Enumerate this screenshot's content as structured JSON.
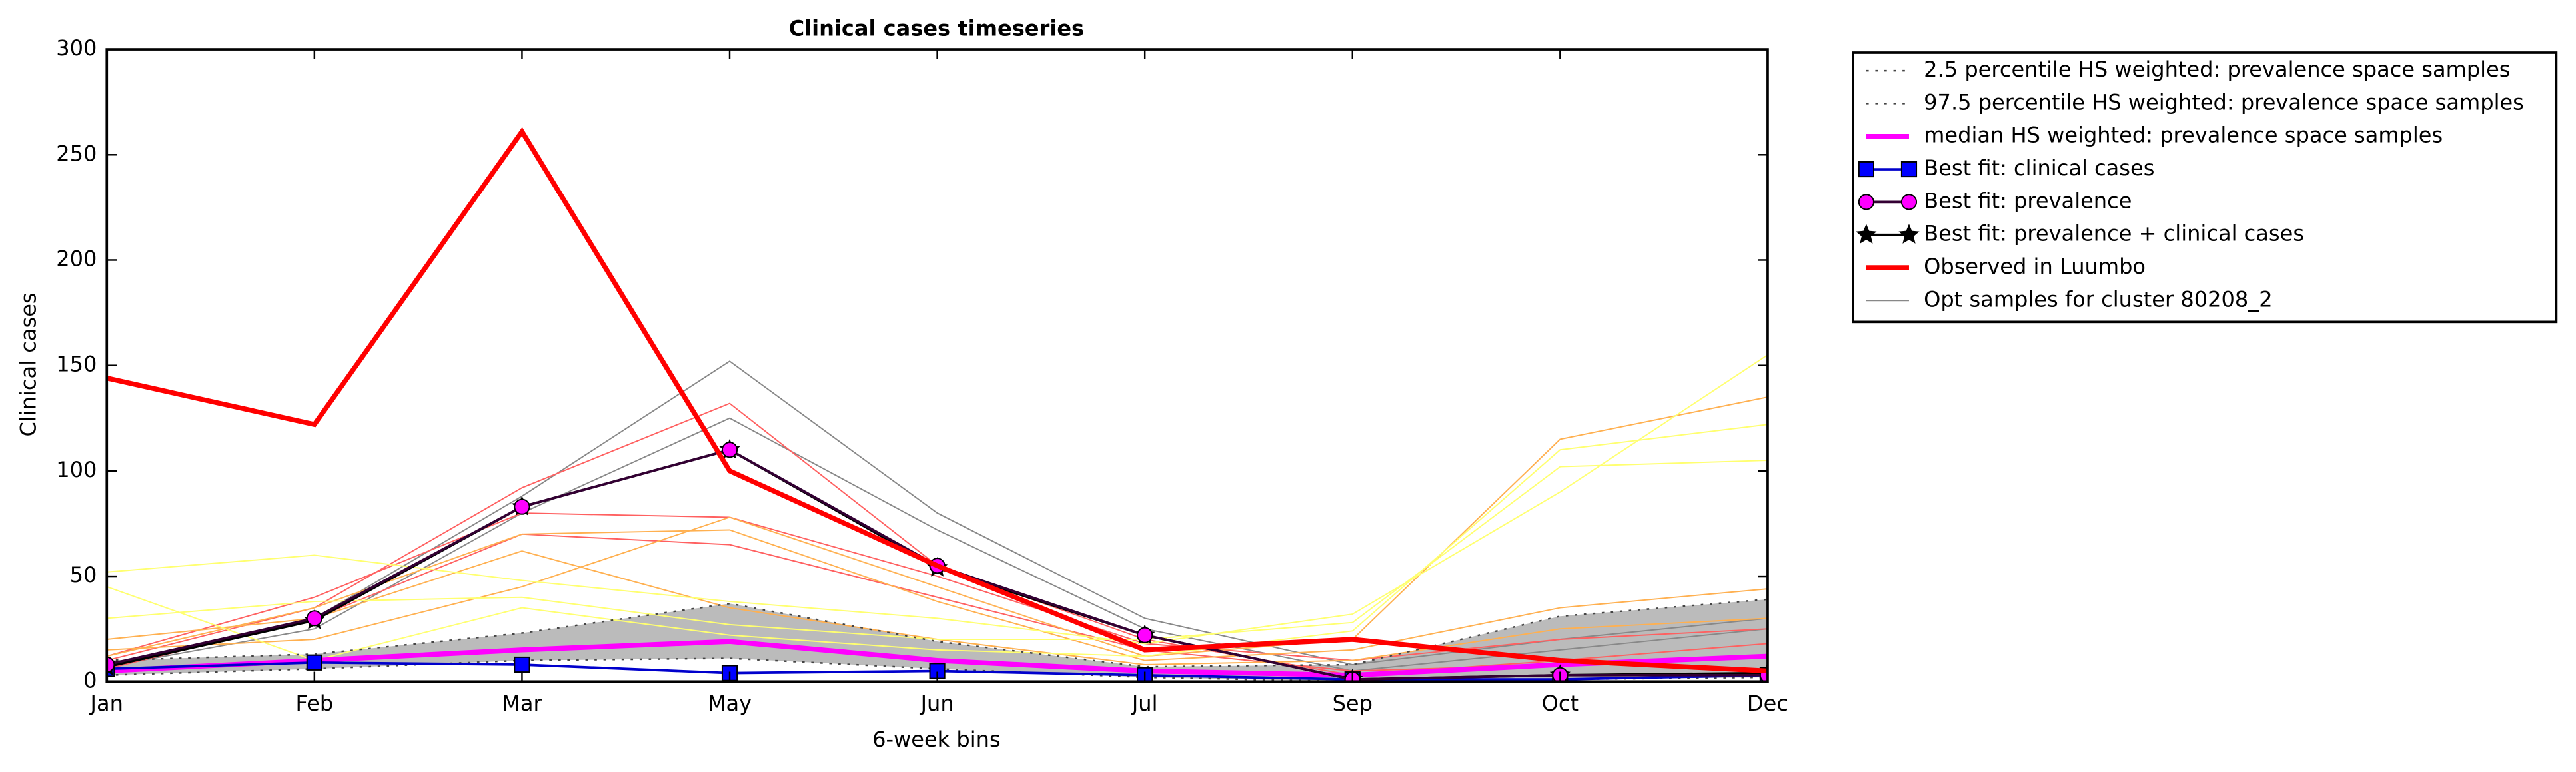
{
  "chart_data": {
    "type": "line",
    "title": "Clinical cases timeseries",
    "xlabel": "6-week bins",
    "ylabel": "Clinical cases",
    "categories": [
      "Jan",
      "Feb",
      "Mar",
      "May",
      "Jun",
      "Jul",
      "Sep",
      "Oct",
      "Dec"
    ],
    "ylim": [
      0,
      300
    ],
    "yticks": [
      0,
      50,
      100,
      150,
      200,
      250,
      300
    ],
    "legend": "outside-upper-right",
    "band_fill": "#bbbbbb",
    "series": [
      {
        "name": "2.5 percentile HS weighted: prevalence space samples",
        "color": "#444444",
        "linestyle": "dotted",
        "linewidth": 1,
        "values": [
          3,
          6,
          10,
          11,
          6,
          2,
          0,
          1,
          2
        ]
      },
      {
        "name": "97.5 percentile HS weighted: prevalence space samples",
        "color": "#444444",
        "linestyle": "dotted",
        "linewidth": 1,
        "values": [
          10,
          13,
          23,
          37,
          19,
          7,
          8,
          31,
          39
        ]
      },
      {
        "name": "median HS weighted: prevalence space samples",
        "color": "#ff00ff",
        "linestyle": "solid",
        "linewidth": 3,
        "values": [
          5,
          10,
          15,
          19,
          10,
          5,
          3,
          8,
          12
        ]
      },
      {
        "name": "Best fit: clinical cases",
        "color": "#0000cc",
        "marker": "square",
        "markercolor": "#0000ff",
        "linestyle": "solid",
        "linewidth": 1.5,
        "values": [
          6,
          9,
          8,
          4,
          5,
          3,
          1,
          1,
          3
        ]
      },
      {
        "name": "Best fit: prevalence",
        "color": "#330033",
        "marker": "circle",
        "markercolor": "#ff00ff",
        "linestyle": "solid",
        "linewidth": 1.5,
        "values": [
          8,
          30,
          83,
          110,
          55,
          22,
          1,
          3,
          3
        ]
      },
      {
        "name": "Best fit: prevalence + clinical cases",
        "color": "#000000",
        "marker": "star",
        "markercolor": "#000000",
        "linestyle": "solid",
        "linewidth": 1.5,
        "values": [
          7,
          29,
          83,
          110,
          54,
          22,
          1,
          3,
          4
        ]
      },
      {
        "name": "Observed in Luumbo",
        "color": "#ff0000",
        "linestyle": "solid",
        "linewidth": 3,
        "values": [
          144,
          122,
          261,
          100,
          55,
          15,
          20,
          10,
          5
        ]
      },
      {
        "name": "Opt samples for cluster 80208_2",
        "color": "#888888",
        "linestyle": "solid",
        "linewidth": 0.8,
        "lines": [
          {
            "color": "#888888",
            "values": [
              8,
              30,
              88,
              152,
              80,
              30,
              8,
              20,
              30
            ]
          },
          {
            "color": "#888888",
            "values": [
              7,
              25,
              80,
              125,
              72,
              25,
              5,
              15,
              25
            ]
          },
          {
            "color": "#ff6060",
            "values": [
              10,
              35,
              92,
              132,
              55,
              20,
              3,
              10,
              18
            ]
          },
          {
            "color": "#ff6060",
            "values": [
              12,
              40,
              80,
              78,
              50,
              18,
              10,
              20,
              25
            ]
          },
          {
            "color": "#ff6060",
            "values": [
              6,
              30,
              70,
              65,
              40,
              15,
              5,
              8,
              12
            ]
          },
          {
            "color": "#ffb050",
            "values": [
              15,
              20,
              45,
              78,
              45,
              12,
              20,
              115,
              135
            ]
          },
          {
            "color": "#ffb050",
            "values": [
              12,
              35,
              70,
              72,
              38,
              10,
              15,
              35,
              44
            ]
          },
          {
            "color": "#ffb050",
            "values": [
              20,
              30,
              62,
              35,
              20,
              8,
              10,
              25,
              30
            ]
          },
          {
            "color": "#ffff70",
            "values": [
              52,
              60,
              48,
              38,
              30,
              18,
              32,
              90,
              155
            ]
          },
          {
            "color": "#ffff70",
            "values": [
              30,
              38,
              40,
              27,
              20,
              20,
              28,
              102,
              105
            ]
          },
          {
            "color": "#ffff70",
            "values": [
              45,
              10,
              35,
              22,
              15,
              12,
              24,
              110,
              122
            ]
          }
        ]
      }
    ]
  }
}
